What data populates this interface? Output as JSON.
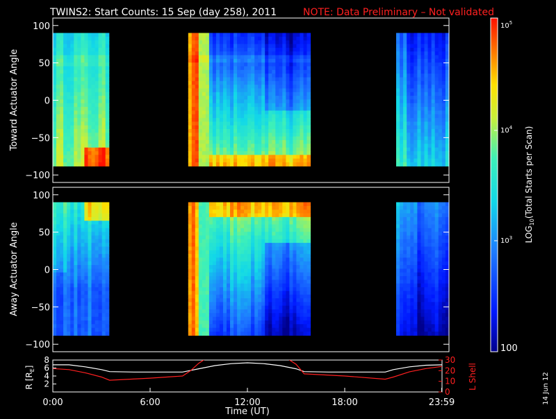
{
  "title": {
    "main": "TWINS2: Start Counts: 15 Sep (day 258), 2011",
    "note": "NOTE: Data Preliminary – Not validated",
    "note_color": "#ff2020"
  },
  "stamp": "14 Jun 12",
  "colorbar": {
    "label": "LOG10(Total Starts per Scan)",
    "ticks": [
      "100",
      "10^3",
      "10^4",
      "10^5"
    ],
    "scale": "log",
    "range": [
      100,
      100000
    ]
  },
  "chart_data": [
    {
      "type": "heatmap",
      "name": "toward-panel",
      "ylabel": "Toward Actuator Angle",
      "x_unit": "hours UT",
      "xlim": [
        0,
        24
      ],
      "ylim": [
        -110,
        110
      ],
      "yticks": [
        100,
        50,
        0,
        -50,
        -100
      ],
      "y_extent": [
        -88,
        90
      ],
      "data_intervals": [
        [
          0,
          3.4
        ],
        [
          8.2,
          15.6
        ],
        [
          20.8,
          24
        ]
      ],
      "color_scale": "log counts per scan, 100 to 100000"
    },
    {
      "type": "heatmap",
      "name": "away-panel",
      "ylabel": "Away Actuator Angle",
      "x_unit": "hours UT",
      "xlim": [
        0,
        24
      ],
      "ylim": [
        -110,
        110
      ],
      "yticks": [
        100,
        50,
        0,
        -50,
        -100
      ],
      "y_extent": [
        -88,
        90
      ],
      "data_intervals": [
        [
          0,
          3.4
        ],
        [
          8.2,
          15.6
        ],
        [
          20.8,
          24
        ]
      ],
      "color_scale": "log counts per scan, 100 to 100000"
    },
    {
      "type": "line",
      "name": "orbit-panel",
      "xlabel": "Time (UT)",
      "xticks": [
        "0:00",
        "6:00",
        "12:00",
        "18:00",
        "23:59"
      ],
      "xtick_hours": [
        0,
        6,
        12,
        18,
        23.98
      ],
      "left_axis": {
        "label": "R [RE]",
        "ticks": [
          "8",
          "6",
          "4",
          "2"
        ],
        "lim": [
          0,
          8
        ],
        "color": "#ffffff"
      },
      "right_axis": {
        "label": "L Shell",
        "ticks": [
          "30",
          "20",
          "10",
          "0"
        ],
        "lim": [
          0,
          30
        ],
        "color": "#ff2020"
      },
      "series": [
        {
          "name": "R [RE]",
          "axis": "left",
          "color": "#ffffff",
          "x": [
            0,
            1,
            2,
            3,
            3.5,
            5,
            8,
            9,
            10,
            11,
            12,
            13,
            14,
            15,
            15.5,
            17,
            20.5,
            21,
            22,
            23,
            24
          ],
          "y": [
            6.8,
            6.8,
            6.3,
            5.6,
            5.1,
            5.0,
            5.0,
            5.8,
            6.6,
            7.1,
            7.3,
            7.1,
            6.6,
            5.8,
            5.1,
            5.0,
            5.0,
            5.6,
            6.3,
            6.7,
            6.8
          ]
        },
        {
          "name": "L Shell",
          "axis": "right",
          "color": "#ff2020",
          "x": [
            0,
            1,
            2,
            3,
            3.5,
            6,
            8,
            8.5,
            9,
            9.4,
            14.5,
            15,
            15.5,
            18,
            20.5,
            21,
            22,
            23,
            24
          ],
          "y": [
            22,
            21,
            18,
            14,
            11,
            13,
            15,
            20,
            27,
            31,
            31,
            26,
            17,
            15,
            12,
            14,
            19,
            22,
            24
          ]
        }
      ]
    }
  ]
}
